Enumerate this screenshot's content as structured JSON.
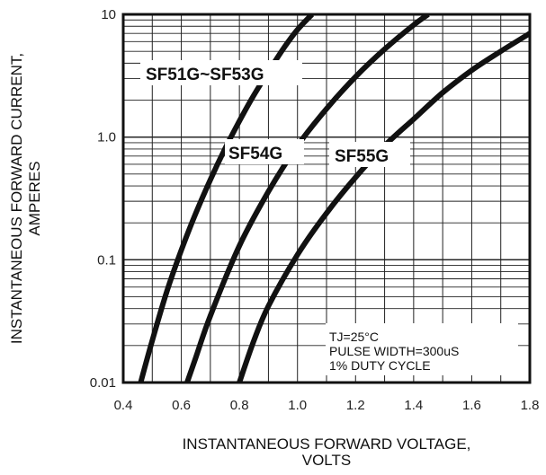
{
  "chart_data": {
    "type": "line",
    "x_scale": "linear",
    "y_scale": "log",
    "xlabel_line1": "INSTANTANEOUS FORWARD VOLTAGE,",
    "xlabel_line2": "VOLTS",
    "ylabel_line1": "INSTANTANEOUS FORWARD CURRENT,",
    "ylabel_line2": "AMPERES",
    "xlim": [
      0.4,
      1.8
    ],
    "ylim": [
      0.01,
      10
    ],
    "x_ticks": [
      "0.4",
      "0.6",
      "0.8",
      "1.0",
      "1.2",
      "1.4",
      "1.6",
      "1.8"
    ],
    "y_ticks": [
      "0.01",
      "0.1",
      "1.0",
      "10"
    ],
    "grid": true,
    "series": [
      {
        "name": "SF51G~SF53G",
        "x": [
          0.46,
          0.5,
          0.55,
          0.6,
          0.65,
          0.7,
          0.75,
          0.8,
          0.85,
          0.9,
          0.95,
          1.0,
          1.05
        ],
        "y": [
          0.01,
          0.022,
          0.055,
          0.12,
          0.24,
          0.45,
          0.8,
          1.35,
          2.2,
          3.4,
          5.2,
          7.5,
          10
        ]
      },
      {
        "name": "SF54G",
        "x": [
          0.62,
          0.65,
          0.7,
          0.8,
          0.9,
          1.0,
          1.1,
          1.2,
          1.3,
          1.4,
          1.45
        ],
        "y": [
          0.01,
          0.016,
          0.035,
          0.13,
          0.36,
          0.85,
          1.7,
          3.1,
          5.2,
          8.2,
          10
        ]
      },
      {
        "name": "SF55G",
        "x": [
          0.8,
          0.85,
          0.9,
          1.0,
          1.1,
          1.2,
          1.3,
          1.4,
          1.5,
          1.6,
          1.7,
          1.8
        ],
        "y": [
          0.01,
          0.022,
          0.042,
          0.11,
          0.24,
          0.47,
          0.85,
          1.4,
          2.3,
          3.5,
          5.0,
          7.0
        ]
      }
    ],
    "annotation_lines": [
      "TJ=25°C",
      "PULSE WIDTH=300uS",
      "1% DUTY CYCLE"
    ]
  }
}
